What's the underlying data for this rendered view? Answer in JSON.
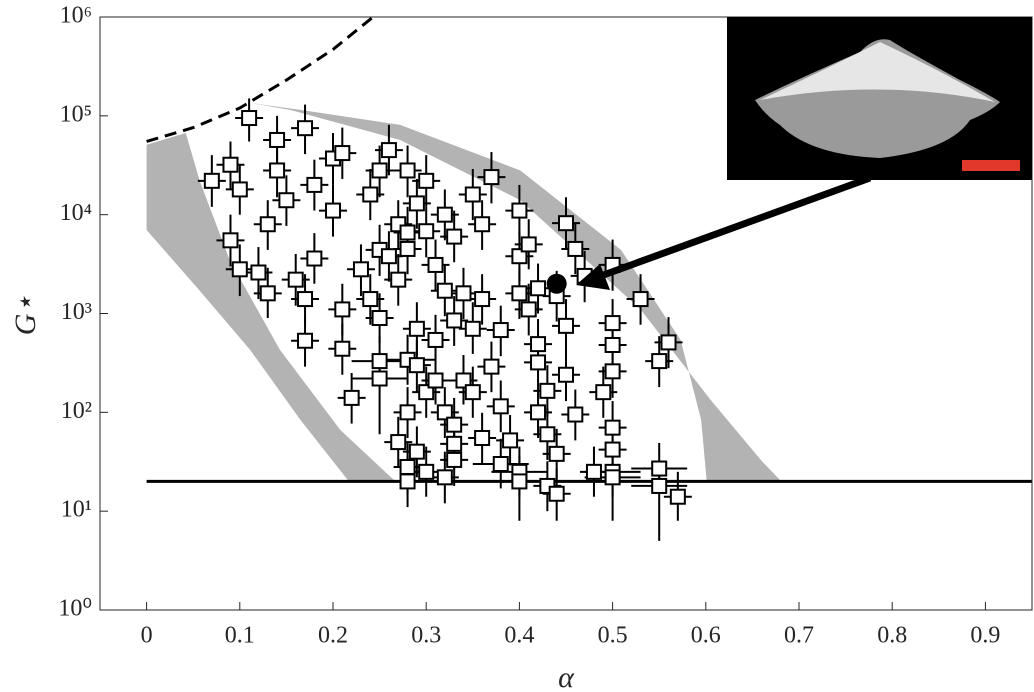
{
  "chart_data": {
    "type": "scatter",
    "xlabel": "α",
    "ylabel": "G⋆",
    "xlim": [
      -0.05,
      0.95
    ],
    "ylim": [
      1,
      1000000
    ],
    "yscale": "log",
    "xticks": [
      0,
      0.1,
      0.2,
      0.3,
      0.4,
      0.5,
      0.6,
      0.7,
      0.8,
      0.9
    ],
    "yticks": [
      {
        "value": 1,
        "label": "10⁰"
      },
      {
        "value": 10,
        "label": "10¹"
      },
      {
        "value": 100,
        "label": "10²"
      },
      {
        "value": 1000,
        "label": "10³"
      },
      {
        "value": 10000,
        "label": "10⁴"
      },
      {
        "value": 100000,
        "label": "10⁵"
      },
      {
        "value": 1000000,
        "label": "10⁶"
      }
    ],
    "bands": [
      {
        "color": "#b3b3b3",
        "x": [
          0,
          0.042,
          0.057,
          0.089,
          0.143,
          0.208,
          0.267,
          0.217,
          0.165,
          0.111,
          0.057,
          0
        ],
        "y": [
          51000,
          67000,
          22000,
          3500,
          430,
          66,
          20,
          20,
          84,
          430,
          1700,
          7000
        ]
      },
      {
        "color": "#b3b3b3",
        "x": [
          0.111,
          0.154,
          0.272,
          0.401,
          0.53,
          0.605,
          0.659,
          0.681,
          0.601,
          0.595,
          0.573,
          0.509,
          0.401,
          0.272,
          0.165
        ],
        "y": [
          135000,
          115000,
          57000,
          14000,
          1100,
          134,
          33,
          20,
          20,
          84,
          540,
          4400,
          28000,
          81000,
          115000
        ]
      }
    ],
    "curves": [
      {
        "style": "dashed",
        "color": "#000000",
        "x": [
          0,
          0.05,
          0.1,
          0.15,
          0.2,
          0.243
        ],
        "y": [
          55000,
          76000,
          120000,
          230000,
          470000,
          1000000
        ]
      },
      {
        "style": "solid",
        "color": "#000000",
        "x": [
          0,
          0.95
        ],
        "y": [
          20,
          20
        ]
      }
    ],
    "points": {
      "x": [
        0.07,
        0.09,
        0.09,
        0.1,
        0.1,
        0.11,
        0.12,
        0.13,
        0.13,
        0.14,
        0.14,
        0.15,
        0.16,
        0.17,
        0.17,
        0.17,
        0.18,
        0.18,
        0.2,
        0.2,
        0.21,
        0.21,
        0.21,
        0.22,
        0.24,
        0.23,
        0.24,
        0.25,
        0.25,
        0.25,
        0.25,
        0.25,
        0.26,
        0.26,
        0.27,
        0.27,
        0.27,
        0.28,
        0.28,
        0.28,
        0.28,
        0.28,
        0.28,
        0.28,
        0.29,
        0.29,
        0.29,
        0.29,
        0.3,
        0.3,
        0.3,
        0.3,
        0.31,
        0.31,
        0.31,
        0.32,
        0.32,
        0.32,
        0.32,
        0.33,
        0.33,
        0.33,
        0.33,
        0.33,
        0.34,
        0.34,
        0.35,
        0.35,
        0.35,
        0.36,
        0.36,
        0.36,
        0.37,
        0.37,
        0.38,
        0.38,
        0.38,
        0.39,
        0.4,
        0.4,
        0.4,
        0.4,
        0.4,
        0.41,
        0.41,
        0.42,
        0.42,
        0.42,
        0.42,
        0.43,
        0.43,
        0.43,
        0.44,
        0.44,
        0.44,
        0.45,
        0.45,
        0.45,
        0.46,
        0.46,
        0.47,
        0.48,
        0.49,
        0.5,
        0.5,
        0.5,
        0.5,
        0.5,
        0.5,
        0.5,
        0.5,
        0.53,
        0.55,
        0.55,
        0.55,
        0.56,
        0.57
      ],
      "y": [
        22000,
        5500,
        32000,
        18000,
        2800,
        95000,
        2600,
        8000,
        1600,
        57000,
        28000,
        14000,
        2200,
        75000,
        1400,
        530,
        20000,
        3600,
        37000,
        11000,
        42000,
        1100,
        440,
        140,
        16000,
        2800,
        1400,
        28000,
        4400,
        900,
        330,
        220,
        45000,
        3800,
        8000,
        2200,
        50,
        28000,
        4500,
        6600,
        340,
        100,
        28,
        20,
        13000,
        700,
        300,
        40,
        22000,
        6800,
        160,
        25,
        3100,
        540,
        210,
        10000,
        1700,
        100,
        22,
        6000,
        850,
        75,
        48,
        33,
        1600,
        210,
        16000,
        700,
        160,
        8000,
        1400,
        55,
        24000,
        290,
        680,
        115,
        30,
        52,
        11000,
        3800,
        1600,
        25,
        20,
        5000,
        1100,
        1800,
        490,
        320,
        100,
        165,
        60,
        18,
        38,
        1500,
        15,
        8200,
        750,
        240,
        4500,
        95,
        2400,
        25,
        160,
        3100,
        800,
        480,
        260,
        70,
        42,
        25,
        22,
        1400,
        330,
        27,
        18,
        510,
        14
      ],
      "y_lower": [
        12000,
        3000,
        18000,
        10000,
        1500,
        55000,
        1400,
        4400,
        900,
        31000,
        15000,
        7700,
        1200,
        41000,
        770,
        290,
        11000,
        2000,
        20000,
        6000,
        23000,
        600,
        240,
        77,
        8800,
        1500,
        770,
        15000,
        2400,
        500,
        180,
        60,
        25000,
        2100,
        4400,
        1200,
        28,
        15000,
        2500,
        3600,
        190,
        55,
        15,
        11,
        7200,
        380,
        160,
        22,
        12000,
        3700,
        88,
        14,
        1700,
        300,
        120,
        5500,
        940,
        55,
        12,
        3300,
        470,
        41,
        26,
        18,
        880,
        120,
        8800,
        390,
        88,
        4400,
        770,
        30,
        13000,
        160,
        370,
        63,
        17,
        29,
        6000,
        2100,
        880,
        14,
        8,
        2800,
        600,
        1000,
        270,
        180,
        55,
        91,
        33,
        10,
        21,
        830,
        8,
        4500,
        410,
        130,
        2500,
        52,
        1300,
        14,
        88,
        1700,
        440,
        260,
        140,
        38,
        23,
        14,
        8,
        770,
        180,
        15,
        5,
        280,
        8
      ],
      "y_upper": [
        40000,
        10000,
        55000,
        32000,
        5000,
        150000,
        4700,
        14000,
        2900,
        100000,
        50000,
        25000,
        4000,
        130000,
        2500,
        950,
        36000,
        6500,
        67000,
        20000,
        76000,
        2000,
        790,
        250,
        29000,
        5000,
        2500,
        50000,
        7900,
        1600,
        590,
        400,
        81000,
        6800,
        14000,
        4000,
        90,
        50000,
        8100,
        12000,
        610,
        180,
        50,
        36,
        23000,
        1300,
        540,
        72,
        40000,
        12000,
        290,
        45,
        5600,
        970,
        380,
        18000,
        3100,
        180,
        40,
        11000,
        1500,
        140,
        86,
        59,
        2900,
        380,
        29000,
        1300,
        290,
        14000,
        2500,
        99,
        43000,
        520,
        1200,
        210,
        54,
        94,
        20000,
        6800,
        2900,
        45,
        36,
        9000,
        2000,
        3200,
        880,
        580,
        180,
        300,
        110,
        32,
        68,
        2700,
        27,
        15000,
        1400,
        430,
        8100,
        170,
        4300,
        45,
        290,
        5600,
        1400,
        860,
        470,
        130,
        76,
        45,
        40,
        2500,
        590,
        49,
        32,
        920,
        25
      ],
      "x_error": [
        0.015,
        0.015,
        0.015,
        0.015,
        0.015,
        0.015,
        0.015,
        0.015,
        0.015,
        0.015,
        0.015,
        0.015,
        0.015,
        0.015,
        0.015,
        0.015,
        0.015,
        0.015,
        0.015,
        0.015,
        0.015,
        0.015,
        0.015,
        0.015,
        0.015,
        0.015,
        0.015,
        0.015,
        0.015,
        0.015,
        0.03,
        0.03,
        0.015,
        0.015,
        0.015,
        0.015,
        0.015,
        0.015,
        0.015,
        0.015,
        0.03,
        0.015,
        0.015,
        0.03,
        0.015,
        0.015,
        0.015,
        0.015,
        0.015,
        0.015,
        0.015,
        0.015,
        0.015,
        0.015,
        0.015,
        0.015,
        0.015,
        0.015,
        0.015,
        0.015,
        0.015,
        0.015,
        0.015,
        0.015,
        0.015,
        0.015,
        0.015,
        0.015,
        0.015,
        0.015,
        0.015,
        0.015,
        0.015,
        0.015,
        0.015,
        0.015,
        0.03,
        0.015,
        0.015,
        0.015,
        0.015,
        0.03,
        0.03,
        0.015,
        0.015,
        0.015,
        0.015,
        0.015,
        0.015,
        0.015,
        0.015,
        0.015,
        0.015,
        0.015,
        0.015,
        0.015,
        0.015,
        0.015,
        0.015,
        0.015,
        0.015,
        0.015,
        0.015,
        0.015,
        0.015,
        0.015,
        0.015,
        0.015,
        0.015,
        0.03,
        0.03,
        0.015,
        0.015,
        0.03,
        0.03,
        0.015,
        0.015
      ]
    },
    "highlight": {
      "x": 0.44,
      "y": 2000,
      "color": "#000000"
    }
  }
}
